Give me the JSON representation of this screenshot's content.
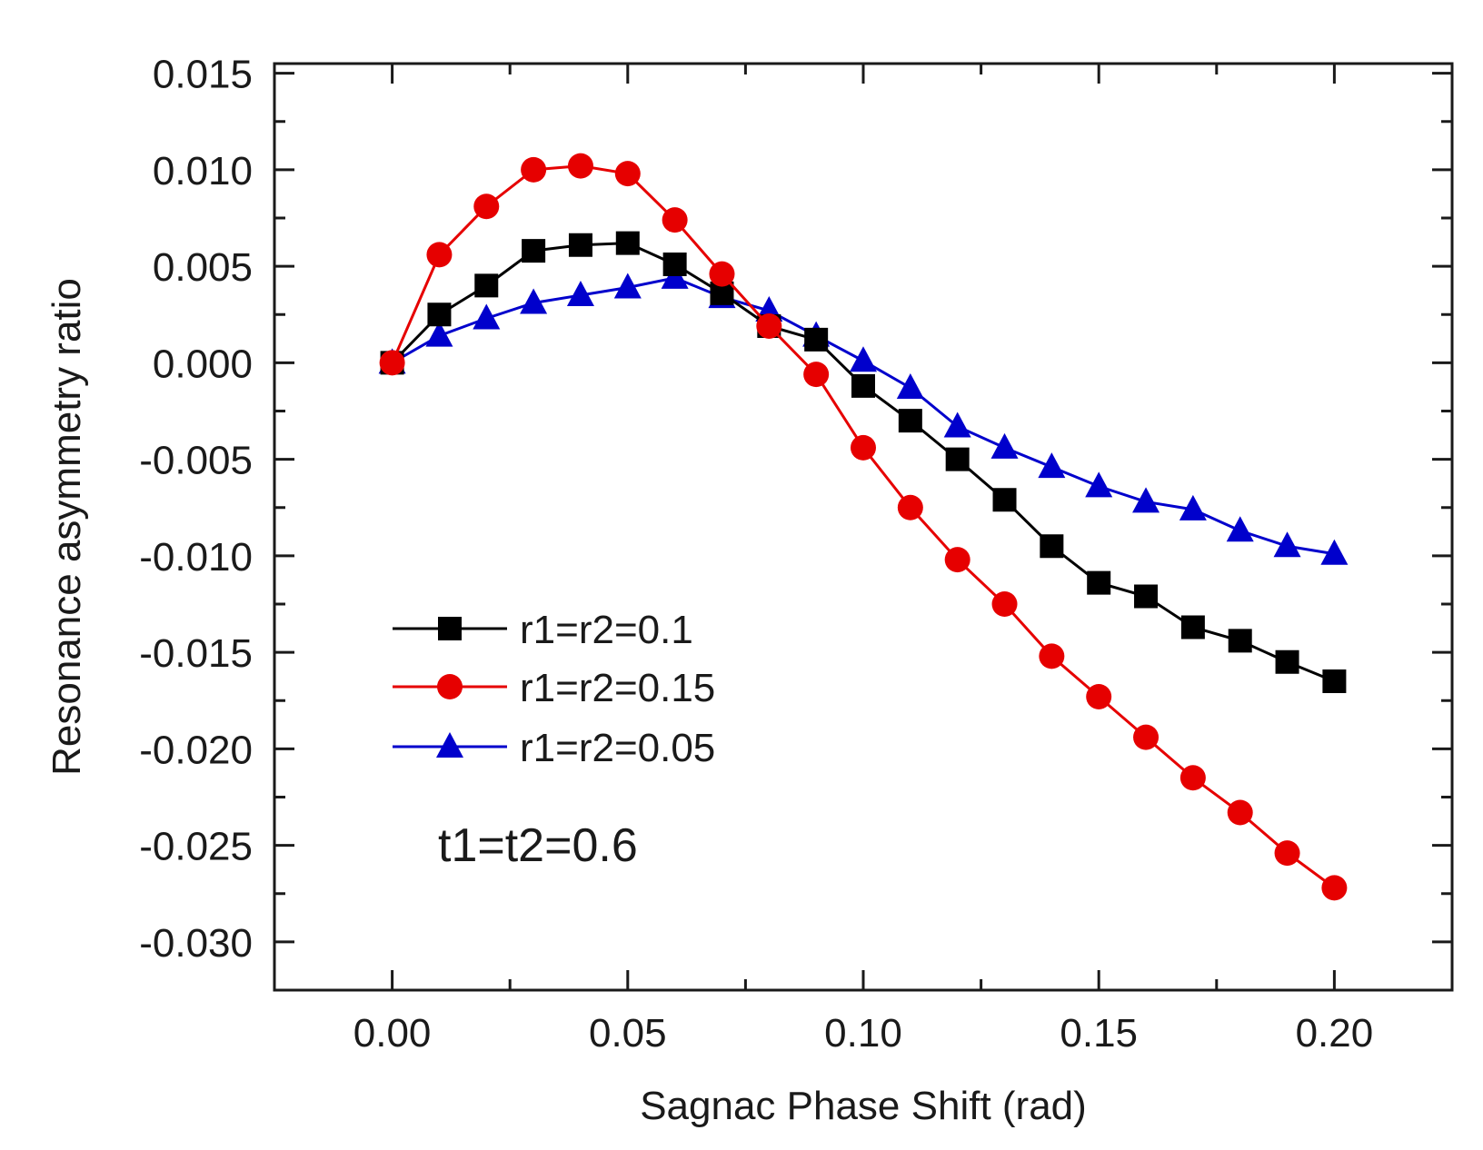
{
  "chart_data": {
    "type": "line",
    "title": "",
    "xlabel": "Sagnac Phase Shift (rad)",
    "ylabel": "Resonance asymmetry ratio",
    "xlim": [
      -0.025,
      0.225
    ],
    "ylim": [
      -0.0325,
      0.0155
    ],
    "xticks": [
      0.0,
      0.05,
      0.1,
      0.15,
      0.2
    ],
    "xtick_labels": [
      "0.00",
      "0.05",
      "0.10",
      "0.15",
      "0.20"
    ],
    "yticks": [
      0.015,
      0.01,
      0.005,
      0.0,
      -0.005,
      -0.01,
      -0.015,
      -0.02,
      -0.025,
      -0.03
    ],
    "ytick_labels": [
      "0.015",
      "0.010",
      "0.005",
      "0.000",
      "-0.005",
      "-0.010",
      "-0.015",
      "-0.020",
      "-0.025",
      "-0.030"
    ],
    "grid": false,
    "legend_position": "lower-left",
    "annotation": "t1=t2=0.6",
    "x": [
      0.0,
      0.01,
      0.02,
      0.03,
      0.04,
      0.05,
      0.06,
      0.07,
      0.08,
      0.09,
      0.1,
      0.11,
      0.12,
      0.13,
      0.14,
      0.15,
      0.16,
      0.17,
      0.18,
      0.19,
      0.2
    ],
    "series": [
      {
        "name": "r1=r2=0.1",
        "color": "#000000",
        "marker": "square",
        "values": [
          0.0,
          0.0025,
          0.004,
          0.0058,
          0.0061,
          0.0062,
          0.0051,
          0.0036,
          0.0019,
          0.0012,
          -0.0012,
          -0.003,
          -0.005,
          -0.0071,
          -0.0095,
          -0.0114,
          -0.0121,
          -0.0137,
          -0.0144,
          -0.0155,
          -0.0165
        ]
      },
      {
        "name": "r1=r2=0.15",
        "color": "#e60000",
        "marker": "circle",
        "values": [
          0.0,
          0.0056,
          0.0081,
          0.01,
          0.0102,
          0.0098,
          0.0074,
          0.0046,
          0.0019,
          -0.0006,
          -0.0044,
          -0.0075,
          -0.0102,
          -0.0125,
          -0.0152,
          -0.0173,
          -0.0194,
          -0.0215,
          -0.0233,
          -0.0254,
          -0.0272
        ]
      },
      {
        "name": "r1=r2=0.05",
        "color": "#0000cc",
        "marker": "triangle",
        "values": [
          0.0,
          0.0014,
          0.0023,
          0.0031,
          0.0035,
          0.0039,
          0.0044,
          0.0034,
          0.0027,
          0.0014,
          0.0001,
          -0.0013,
          -0.0033,
          -0.0044,
          -0.0054,
          -0.0064,
          -0.0072,
          -0.0076,
          -0.0087,
          -0.0095,
          -0.0099
        ]
      }
    ]
  }
}
